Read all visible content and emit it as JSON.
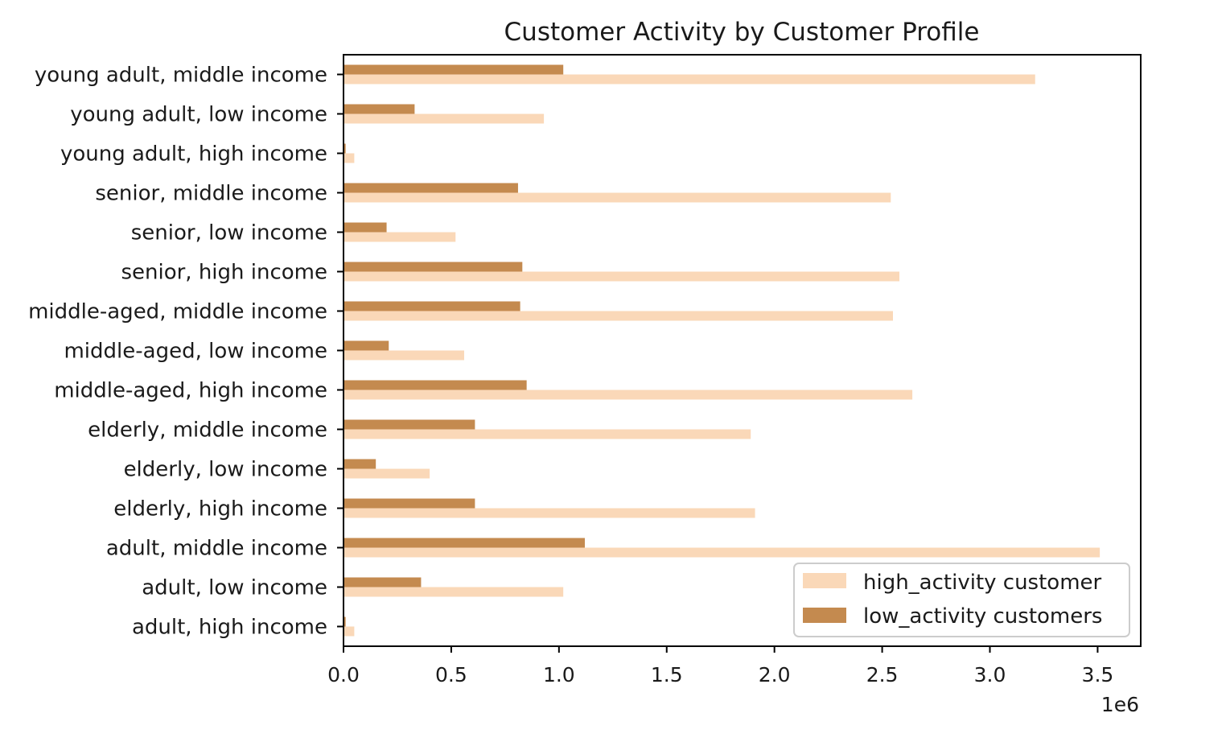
{
  "chart_data": {
    "type": "bar",
    "orientation": "horizontal",
    "title": "Customer Activity by Customer Profile",
    "xlabel": "",
    "ylabel": "",
    "x_offset_label": "1e6",
    "xlim": [
      0,
      3.7
    ],
    "x_ticks": [
      {
        "value": 0.0,
        "label": "0.0"
      },
      {
        "value": 0.5,
        "label": "0.5"
      },
      {
        "value": 1.0,
        "label": "1.0"
      },
      {
        "value": 1.5,
        "label": "1.5"
      },
      {
        "value": 2.0,
        "label": "2.0"
      },
      {
        "value": 2.5,
        "label": "2.5"
      },
      {
        "value": 3.0,
        "label": "3.0"
      },
      {
        "value": 3.5,
        "label": "3.5"
      }
    ],
    "categories": [
      "adult, high income",
      "adult, low income",
      "adult, middle income",
      "elderly, high income",
      "elderly, low income",
      "elderly, middle income",
      "middle-aged, high income",
      "middle-aged, low income",
      "middle-aged, middle income",
      "senior, high income",
      "senior, low income",
      "senior, middle income",
      "young adult, high income",
      "young adult, low income",
      "young adult, middle income"
    ],
    "series": [
      {
        "name": "high_activity customer",
        "color": "#fad8b8",
        "values": [
          0.05,
          1.02,
          3.51,
          1.91,
          0.4,
          1.89,
          2.64,
          0.56,
          2.55,
          2.58,
          0.52,
          2.54,
          0.05,
          0.93,
          3.21
        ]
      },
      {
        "name": "low_activity customers",
        "color": "#c48a4f",
        "values": [
          0.01,
          0.36,
          1.12,
          0.61,
          0.15,
          0.61,
          0.85,
          0.21,
          0.82,
          0.83,
          0.2,
          0.81,
          0.01,
          0.33,
          1.02
        ]
      }
    ],
    "grid": false,
    "legend_position": "lower-right"
  }
}
